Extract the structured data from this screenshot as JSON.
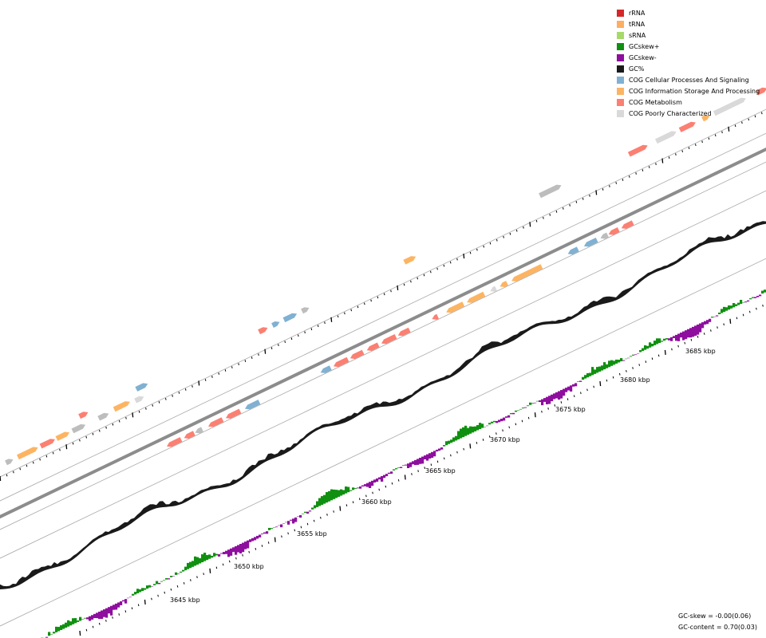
{
  "legend": [
    {
      "label": "rRNA",
      "color": "#d62728"
    },
    {
      "label": "tRNA",
      "color": "#fdae61"
    },
    {
      "label": "sRNA",
      "color": "#a6d96a"
    },
    {
      "label": "GCskew+",
      "color": "#109010"
    },
    {
      "label": "GCskew-",
      "color": "#8e0e9e"
    },
    {
      "label": "GC%",
      "color": "#1a1a1a"
    },
    {
      "label": "COG Cellular Processes And Signaling",
      "color": "#80b1d3"
    },
    {
      "label": "COG Information Storage And Processing",
      "color": "#fdb462"
    },
    {
      "label": "COG Metabolism",
      "color": "#fb8072"
    },
    {
      "label": "COG Poorly Characterized",
      "color": "#d9d9d9"
    }
  ],
  "stats": {
    "gc_skew": "GC-skew = -0.00(0.06)",
    "gc_content": "GC-content = 0.70(0.03)"
  },
  "scale_labels": [
    "3645 kbp",
    "3650 kbp",
    "3655 kbp",
    "3660 kbp",
    "3665 kbp",
    "3670 kbp",
    "3675 kbp",
    "3680 kbp",
    "3685 kbp"
  ],
  "colors": {
    "cog_cellular": "#80b1d3",
    "cog_information": "#fdb462",
    "cog_metabolism": "#fb8072",
    "cog_poor": "#d9d9d9",
    "cog_unknown": "#bdbdbd",
    "gc_content": "#1a1a1a",
    "gc_skew_pos": "#109010",
    "gc_skew_neg": "#8e0e9e",
    "backbone": "#8c8c8c",
    "ring": "#aaaaaa",
    "trna": "#fdae61"
  }
}
